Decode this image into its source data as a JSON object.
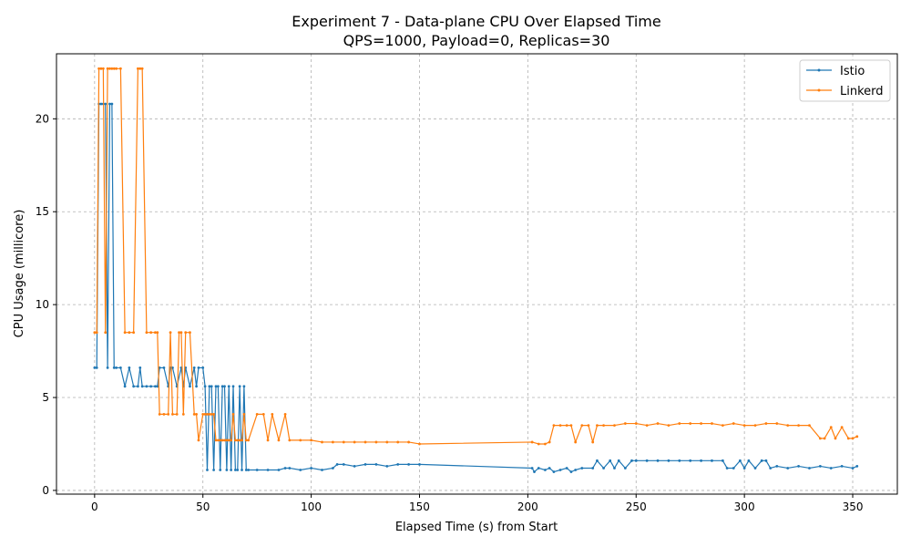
{
  "chart_data": {
    "type": "line",
    "title": "Experiment 7 - Data-plane CPU Over Elapsed Time",
    "subtitle": "QPS=1000, Payload=0, Replicas=30",
    "xlabel": "Elapsed Time (s) from Start",
    "ylabel": "CPU Usage (millicore)",
    "xlim": [
      -17.6,
      370.6
    ],
    "ylim": [
      -0.2,
      23.5
    ],
    "xticks": [
      0,
      50,
      100,
      150,
      200,
      250,
      300,
      350
    ],
    "yticks": [
      0,
      5,
      10,
      15,
      20
    ],
    "grid": true,
    "legend_position": "top-right",
    "series": [
      {
        "name": "Istio",
        "color": "#1f77b4",
        "x": [
          0,
          1,
          2,
          3,
          4,
          5,
          6,
          7,
          8,
          9,
          10,
          12,
          14,
          16,
          18,
          20,
          21,
          22,
          24,
          26,
          28,
          29,
          30,
          32,
          34,
          35,
          36,
          38,
          40,
          41,
          42,
          44,
          46,
          47,
          48,
          50,
          51,
          52,
          53,
          54,
          55,
          56,
          57,
          58,
          59,
          60,
          61,
          62,
          63,
          64,
          65,
          66,
          67,
          68,
          69,
          70,
          71,
          75,
          80,
          85,
          88,
          90,
          95,
          100,
          105,
          110,
          112,
          115,
          120,
          125,
          130,
          135,
          140,
          145,
          150,
          202,
          203,
          205,
          208,
          210,
          212,
          215,
          218,
          220,
          222,
          225,
          230,
          232,
          235,
          238,
          240,
          242,
          245,
          248,
          250,
          255,
          260,
          265,
          270,
          275,
          280,
          285,
          290,
          292,
          295,
          298,
          300,
          302,
          305,
          308,
          310,
          312,
          315,
          320,
          325,
          330,
          335,
          340,
          345,
          350,
          352
        ],
        "values": [
          6.6,
          6.6,
          20.8,
          20.8,
          20.8,
          20.8,
          6.6,
          20.8,
          20.8,
          6.6,
          6.6,
          6.6,
          5.6,
          6.6,
          5.6,
          5.6,
          6.6,
          5.6,
          5.6,
          5.6,
          5.6,
          5.6,
          6.6,
          6.6,
          5.6,
          6.6,
          6.6,
          5.6,
          6.6,
          5.6,
          6.6,
          5.6,
          6.6,
          5.6,
          6.6,
          6.6,
          5.6,
          1.1,
          5.6,
          5.6,
          1.1,
          5.6,
          5.6,
          1.1,
          5.6,
          5.6,
          1.1,
          5.6,
          1.1,
          5.6,
          1.1,
          1.1,
          5.6,
          1.1,
          5.6,
          1.1,
          1.1,
          1.1,
          1.1,
          1.1,
          1.2,
          1.2,
          1.1,
          1.2,
          1.1,
          1.2,
          1.4,
          1.4,
          1.3,
          1.4,
          1.4,
          1.3,
          1.4,
          1.4,
          1.4,
          1.2,
          1.0,
          1.2,
          1.1,
          1.2,
          1.0,
          1.1,
          1.2,
          1.0,
          1.1,
          1.2,
          1.2,
          1.6,
          1.2,
          1.6,
          1.2,
          1.6,
          1.2,
          1.6,
          1.6,
          1.6,
          1.6,
          1.6,
          1.6,
          1.6,
          1.6,
          1.6,
          1.6,
          1.2,
          1.2,
          1.6,
          1.2,
          1.6,
          1.2,
          1.6,
          1.6,
          1.2,
          1.3,
          1.2,
          1.3,
          1.2,
          1.3,
          1.2,
          1.3,
          1.2,
          1.3
        ]
      },
      {
        "name": "Linkerd",
        "color": "#ff7f0e",
        "x": [
          0,
          1,
          2,
          3,
          4,
          5,
          6,
          7,
          8,
          9,
          10,
          12,
          14,
          16,
          18,
          20,
          21,
          22,
          24,
          26,
          28,
          29,
          30,
          32,
          34,
          35,
          36,
          38,
          39,
          40,
          41,
          42,
          44,
          46,
          47,
          48,
          50,
          51,
          52,
          53,
          54,
          55,
          56,
          57,
          58,
          59,
          60,
          61,
          62,
          63,
          64,
          65,
          66,
          67,
          68,
          69,
          70,
          71,
          75,
          78,
          80,
          82,
          85,
          88,
          90,
          95,
          100,
          105,
          110,
          115,
          120,
          125,
          130,
          135,
          140,
          145,
          150,
          202,
          205,
          208,
          210,
          212,
          215,
          218,
          220,
          222,
          225,
          228,
          230,
          232,
          235,
          240,
          245,
          250,
          255,
          260,
          265,
          270,
          275,
          280,
          285,
          290,
          295,
          300,
          305,
          310,
          315,
          320,
          325,
          330,
          335,
          337,
          340,
          342,
          345,
          348,
          350,
          352
        ],
        "values": [
          8.5,
          8.5,
          22.7,
          22.7,
          22.7,
          8.5,
          22.7,
          22.7,
          22.7,
          22.7,
          22.7,
          22.7,
          8.5,
          8.5,
          8.5,
          22.7,
          22.7,
          22.7,
          8.5,
          8.5,
          8.5,
          8.5,
          4.1,
          4.1,
          4.1,
          8.5,
          4.1,
          4.1,
          8.5,
          8.5,
          4.1,
          8.5,
          8.5,
          4.1,
          4.1,
          2.7,
          4.1,
          4.1,
          4.1,
          4.1,
          4.1,
          4.1,
          2.7,
          2.7,
          2.7,
          2.7,
          2.7,
          2.7,
          2.7,
          2.7,
          4.1,
          2.7,
          2.7,
          2.7,
          2.7,
          4.1,
          2.7,
          2.7,
          4.1,
          4.1,
          2.7,
          4.1,
          2.7,
          4.1,
          2.7,
          2.7,
          2.7,
          2.6,
          2.6,
          2.6,
          2.6,
          2.6,
          2.6,
          2.6,
          2.6,
          2.6,
          2.5,
          2.6,
          2.5,
          2.5,
          2.6,
          3.5,
          3.5,
          3.5,
          3.5,
          2.6,
          3.5,
          3.5,
          2.6,
          3.5,
          3.5,
          3.5,
          3.6,
          3.6,
          3.5,
          3.6,
          3.5,
          3.6,
          3.6,
          3.6,
          3.6,
          3.5,
          3.6,
          3.5,
          3.5,
          3.6,
          3.6,
          3.5,
          3.5,
          3.5,
          2.8,
          2.8,
          3.4,
          2.8,
          3.4,
          2.8,
          2.8,
          2.9
        ]
      }
    ]
  }
}
